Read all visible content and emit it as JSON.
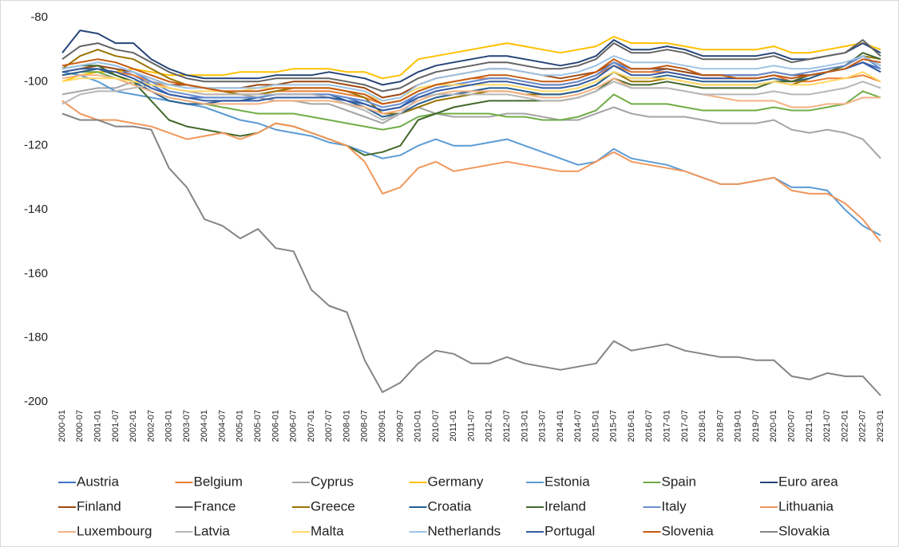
{
  "chart_data": {
    "type": "line",
    "categories": [
      "2000-01",
      "2000-07",
      "2001-01",
      "2001-07",
      "2002-01",
      "2002-07",
      "2003-01",
      "2003-07",
      "2004-01",
      "2004-07",
      "2005-01",
      "2005-07",
      "2006-01",
      "2006-07",
      "2007-01",
      "2007-07",
      "2008-01",
      "2008-07",
      "2009-01",
      "2009-07",
      "2010-01",
      "2010-07",
      "2011-01",
      "2011-07",
      "2012-01",
      "2012-07",
      "2013-01",
      "2013-07",
      "2014-01",
      "2014-07",
      "2015-01",
      "2015-07",
      "2016-01",
      "2016-07",
      "2017-01",
      "2017-07",
      "2018-01",
      "2018-07",
      "2019-01",
      "2019-07",
      "2020-01",
      "2020-07",
      "2021-01",
      "2021-07",
      "2022-01",
      "2022-07",
      "2023-01"
    ],
    "ylim": [
      -200,
      -80
    ],
    "yticks": [
      -200,
      -180,
      -160,
      -140,
      -120,
      -100,
      -80
    ],
    "series": [
      {
        "name": "Austria",
        "color": "#4472c4",
        "values": [
          -97,
          -96,
          -95,
          -96,
          -98,
          -101,
          -104,
          -105,
          -105,
          -105,
          -105,
          -105,
          -104,
          -104,
          -104,
          -104,
          -105,
          -107,
          -109,
          -108,
          -104,
          -102,
          -101,
          -100,
          -99,
          -99,
          -100,
          -101,
          -101,
          -100,
          -98,
          -94,
          -97,
          -97,
          -96,
          -97,
          -98,
          -98,
          -98,
          -98,
          -97,
          -98,
          -98,
          -97,
          -96,
          -94,
          -96
        ]
      },
      {
        "name": "Belgium",
        "color": "#ed7d31",
        "values": [
          -98,
          -97,
          -96,
          -97,
          -98,
          -100,
          -102,
          -103,
          -104,
          -104,
          -104,
          -104,
          -103,
          -103,
          -103,
          -103,
          -104,
          -105,
          -107,
          -106,
          -103,
          -101,
          -100,
          -99,
          -99,
          -99,
          -100,
          -101,
          -101,
          -100,
          -98,
          -95,
          -97,
          -97,
          -97,
          -98,
          -99,
          -99,
          -99,
          -99,
          -98,
          -100,
          -100,
          -99,
          -99,
          -98,
          -100
        ]
      },
      {
        "name": "Cyprus",
        "color": "#a5a5a5",
        "values": [
          -104,
          -103,
          -102,
          -102,
          -100,
          -100,
          -101,
          -101,
          -102,
          -103,
          -104,
          -105,
          -106,
          -106,
          -107,
          -107,
          -109,
          -111,
          -113,
          -110,
          -108,
          -110,
          -111,
          -111,
          -111,
          -110,
          -110,
          -111,
          -112,
          -112,
          -110,
          -108,
          -110,
          -111,
          -111,
          -111,
          -112,
          -113,
          -113,
          -113,
          -112,
          -115,
          -116,
          -115,
          -116,
          -118,
          -124
        ]
      },
      {
        "name": "Germany",
        "color": "#ffc000",
        "values": [
          -100,
          -98,
          -97,
          -97,
          -96,
          -97,
          -98,
          -98,
          -98,
          -98,
          -97,
          -97,
          -97,
          -96,
          -96,
          -96,
          -97,
          -97,
          -99,
          -98,
          -93,
          -92,
          -91,
          -90,
          -89,
          -88,
          -89,
          -90,
          -91,
          -90,
          -89,
          -86,
          -88,
          -88,
          -88,
          -89,
          -90,
          -90,
          -90,
          -90,
          -89,
          -91,
          -91,
          -90,
          -89,
          -88,
          -90
        ]
      },
      {
        "name": "Estonia",
        "color": "#5b9bd5",
        "values": [
          -97,
          -98,
          -100,
          -103,
          -104,
          -105,
          -106,
          -107,
          -108,
          -110,
          -112,
          -113,
          -115,
          -116,
          -117,
          -119,
          -120,
          -122,
          -124,
          -123,
          -120,
          -118,
          -120,
          -120,
          -119,
          -118,
          -120,
          -122,
          -124,
          -126,
          -125,
          -121,
          -124,
          -125,
          -126,
          -128,
          -130,
          -132,
          -132,
          -131,
          -130,
          -133,
          -133,
          -134,
          -140,
          -145,
          -148
        ]
      },
      {
        "name": "Spain",
        "color": "#70ad47",
        "values": [
          -98,
          -97,
          -97,
          -99,
          -101,
          -103,
          -105,
          -106,
          -107,
          -108,
          -109,
          -110,
          -110,
          -110,
          -111,
          -112,
          -113,
          -114,
          -115,
          -114,
          -111,
          -110,
          -110,
          -110,
          -110,
          -111,
          -111,
          -112,
          -112,
          -111,
          -109,
          -104,
          -107,
          -107,
          -107,
          -108,
          -109,
          -109,
          -109,
          -109,
          -108,
          -109,
          -109,
          -108,
          -107,
          -103,
          -105
        ]
      },
      {
        "name": "Euro area",
        "color": "#264478",
        "values": [
          -91,
          -84,
          -85,
          -88,
          -88,
          -93,
          -96,
          -98,
          -99,
          -99,
          -99,
          -99,
          -98,
          -98,
          -98,
          -97,
          -98,
          -99,
          -101,
          -100,
          -97,
          -95,
          -94,
          -93,
          -92,
          -92,
          -93,
          -94,
          -95,
          -94,
          -92,
          -87,
          -90,
          -90,
          -89,
          -90,
          -92,
          -92,
          -92,
          -92,
          -91,
          -93,
          -93,
          -92,
          -91,
          -88,
          -91
        ]
      },
      {
        "name": "Finland",
        "color": "#9e480e",
        "values": [
          -97,
          -96,
          -95,
          -96,
          -97,
          -99,
          -101,
          -101,
          -102,
          -102,
          -102,
          -101,
          -101,
          -100,
          -100,
          -100,
          -101,
          -102,
          -105,
          -104,
          -101,
          -99,
          -98,
          -97,
          -96,
          -96,
          -97,
          -98,
          -99,
          -98,
          -97,
          -94,
          -96,
          -96,
          -96,
          -97,
          -98,
          -98,
          -98,
          -98,
          -97,
          -98,
          -98,
          -97,
          -95,
          -92,
          -95
        ]
      },
      {
        "name": "France",
        "color": "#636363",
        "values": [
          -93,
          -89,
          -88,
          -90,
          -91,
          -94,
          -97,
          -99,
          -100,
          -100,
          -100,
          -100,
          -99,
          -99,
          -99,
          -99,
          -100,
          -101,
          -103,
          -102,
          -99,
          -97,
          -96,
          -95,
          -94,
          -94,
          -95,
          -96,
          -96,
          -95,
          -93,
          -88,
          -91,
          -91,
          -90,
          -91,
          -93,
          -93,
          -93,
          -93,
          -92,
          -94,
          -93,
          -92,
          -91,
          -87,
          -92
        ]
      },
      {
        "name": "Greece",
        "color": "#997300",
        "values": [
          -96,
          -92,
          -90,
          -92,
          -93,
          -96,
          -99,
          -101,
          -102,
          -103,
          -104,
          -104,
          -103,
          -102,
          -102,
          -102,
          -103,
          -105,
          -110,
          -110,
          -108,
          -106,
          -105,
          -104,
          -103,
          -103,
          -104,
          -104,
          -104,
          -103,
          -101,
          -97,
          -100,
          -100,
          -99,
          -100,
          -101,
          -101,
          -101,
          -101,
          -100,
          -101,
          -99,
          -97,
          -95,
          -92,
          -93
        ]
      },
      {
        "name": "Croatia",
        "color": "#255e91",
        "values": [
          -98,
          -97,
          -96,
          -98,
          -100,
          -103,
          -106,
          -107,
          -107,
          -106,
          -106,
          -105,
          -104,
          -104,
          -104,
          -104,
          -106,
          -108,
          -111,
          -110,
          -107,
          -105,
          -104,
          -103,
          -102,
          -102,
          -103,
          -104,
          -104,
          -103,
          -101,
          -97,
          -99,
          -99,
          -98,
          -99,
          -100,
          -100,
          -100,
          -100,
          -99,
          -100,
          -99,
          -97,
          -96,
          -94,
          -97
        ]
      },
      {
        "name": "Ireland",
        "color": "#43682b",
        "values": [
          -96,
          -95,
          -95,
          -98,
          -100,
          -106,
          -112,
          -114,
          -115,
          -116,
          -117,
          -116,
          -113,
          -114,
          -116,
          -118,
          -120,
          -123,
          -122,
          -120,
          -112,
          -110,
          -108,
          -107,
          -106,
          -106,
          -106,
          -106,
          -106,
          -105,
          -103,
          -99,
          -101,
          -101,
          -100,
          -101,
          -102,
          -102,
          -102,
          -102,
          -100,
          -100,
          -98,
          -97,
          -95,
          -91,
          -93
        ]
      },
      {
        "name": "Italy",
        "color": "#698ed0",
        "values": [
          -96,
          -95,
          -94,
          -95,
          -97,
          -100,
          -103,
          -104,
          -105,
          -105,
          -105,
          -105,
          -104,
          -104,
          -104,
          -104,
          -105,
          -106,
          -108,
          -107,
          -104,
          -102,
          -101,
          -100,
          -99,
          -99,
          -100,
          -101,
          -101,
          -100,
          -98,
          -94,
          -96,
          -96,
          -95,
          -96,
          -98,
          -98,
          -98,
          -98,
          -97,
          -98,
          -97,
          -96,
          -95,
          -92,
          -96
        ]
      },
      {
        "name": "Lithuania",
        "color": "#f1975a",
        "values": [
          -106,
          -110,
          -112,
          -112,
          -113,
          -114,
          -116,
          -118,
          -117,
          -116,
          -118,
          -116,
          -113,
          -114,
          -116,
          -118,
          -120,
          -125,
          -135,
          -133,
          -127,
          -125,
          -128,
          -127,
          -126,
          -125,
          -126,
          -127,
          -128,
          -128,
          -125,
          -122,
          -125,
          -126,
          -127,
          -128,
          -130,
          -132,
          -132,
          -131,
          -130,
          -134,
          -135,
          -135,
          -138,
          -143,
          -150
        ]
      },
      {
        "name": "Luxembourg",
        "color": "#f4b183",
        "values": [
          -99,
          -98,
          -98,
          -99,
          -101,
          -103,
          -105,
          -106,
          -107,
          -107,
          -107,
          -107,
          -106,
          -106,
          -106,
          -106,
          -107,
          -108,
          -110,
          -109,
          -106,
          -104,
          -103,
          -103,
          -103,
          -103,
          -104,
          -105,
          -105,
          -104,
          -102,
          -99,
          -102,
          -102,
          -102,
          -103,
          -104,
          -105,
          -106,
          -106,
          -106,
          -108,
          -108,
          -107,
          -107,
          -105,
          -105
        ]
      },
      {
        "name": "Latvia",
        "color": "#b7b7b7",
        "values": [
          -107,
          -104,
          -103,
          -103,
          -102,
          -101,
          -102,
          -103,
          -104,
          -104,
          -104,
          -104,
          -104,
          -104,
          -104,
          -105,
          -107,
          -109,
          -112,
          -110,
          -105,
          -104,
          -104,
          -104,
          -104,
          -104,
          -105,
          -106,
          -106,
          -105,
          -103,
          -100,
          -102,
          -102,
          -102,
          -103,
          -104,
          -104,
          -104,
          -104,
          -103,
          -104,
          -104,
          -103,
          -102,
          -100,
          -102
        ]
      },
      {
        "name": "Malta",
        "color": "#ffd966",
        "values": [
          -100,
          -99,
          -99,
          -99,
          -100,
          -101,
          -102,
          -103,
          -103,
          -103,
          -103,
          -102,
          -102,
          -102,
          -102,
          -102,
          -103,
          -104,
          -106,
          -105,
          -102,
          -101,
          -101,
          -101,
          -101,
          -101,
          -102,
          -103,
          -103,
          -102,
          -100,
          -97,
          -99,
          -99,
          -99,
          -100,
          -101,
          -101,
          -101,
          -101,
          -100,
          -101,
          -101,
          -100,
          -99,
          -97,
          -100
        ]
      },
      {
        "name": "Netherlands",
        "color": "#9dc3e6",
        "values": [
          -96,
          -95,
          -94,
          -95,
          -97,
          -99,
          -101,
          -102,
          -102,
          -102,
          -102,
          -102,
          -101,
          -101,
          -101,
          -101,
          -102,
          -103,
          -106,
          -105,
          -101,
          -99,
          -98,
          -97,
          -96,
          -96,
          -97,
          -98,
          -98,
          -97,
          -95,
          -92,
          -94,
          -94,
          -94,
          -95,
          -96,
          -96,
          -96,
          -96,
          -95,
          -96,
          -96,
          -95,
          -94,
          -92,
          -95
        ]
      },
      {
        "name": "Portugal",
        "color": "#335aa1",
        "values": [
          -97,
          -96,
          -96,
          -97,
          -99,
          -102,
          -104,
          -105,
          -106,
          -106,
          -106,
          -106,
          -105,
          -105,
          -105,
          -105,
          -106,
          -107,
          -109,
          -108,
          -105,
          -103,
          -102,
          -101,
          -100,
          -100,
          -101,
          -102,
          -102,
          -101,
          -99,
          -95,
          -98,
          -98,
          -97,
          -98,
          -99,
          -99,
          -99,
          -99,
          -98,
          -99,
          -98,
          -97,
          -96,
          -94,
          -97
        ]
      },
      {
        "name": "Slovenia",
        "color": "#c55a11",
        "values": [
          -95,
          -94,
          -93,
          -94,
          -96,
          -98,
          -100,
          -101,
          -102,
          -103,
          -103,
          -103,
          -102,
          -102,
          -102,
          -102,
          -103,
          -104,
          -107,
          -106,
          -103,
          -101,
          -100,
          -99,
          -98,
          -98,
          -99,
          -100,
          -100,
          -99,
          -97,
          -93,
          -96,
          -96,
          -95,
          -96,
          -98,
          -98,
          -99,
          -99,
          -98,
          -99,
          -98,
          -97,
          -96,
          -93,
          -94
        ]
      },
      {
        "name": "Slovakia",
        "color": "#848484",
        "values": [
          -110,
          -112,
          -112,
          -114,
          -114,
          -115,
          -127,
          -133,
          -143,
          -145,
          -149,
          -146,
          -152,
          -153,
          -165,
          -170,
          -172,
          -187,
          -197,
          -194,
          -188,
          -184,
          -185,
          -188,
          -188,
          -186,
          -188,
          -189,
          -190,
          -189,
          -188,
          -181,
          -184,
          -183,
          -182,
          -184,
          -185,
          -186,
          -186,
          -187,
          -187,
          -192,
          -193,
          -191,
          -192,
          -192,
          -198
        ]
      }
    ]
  }
}
